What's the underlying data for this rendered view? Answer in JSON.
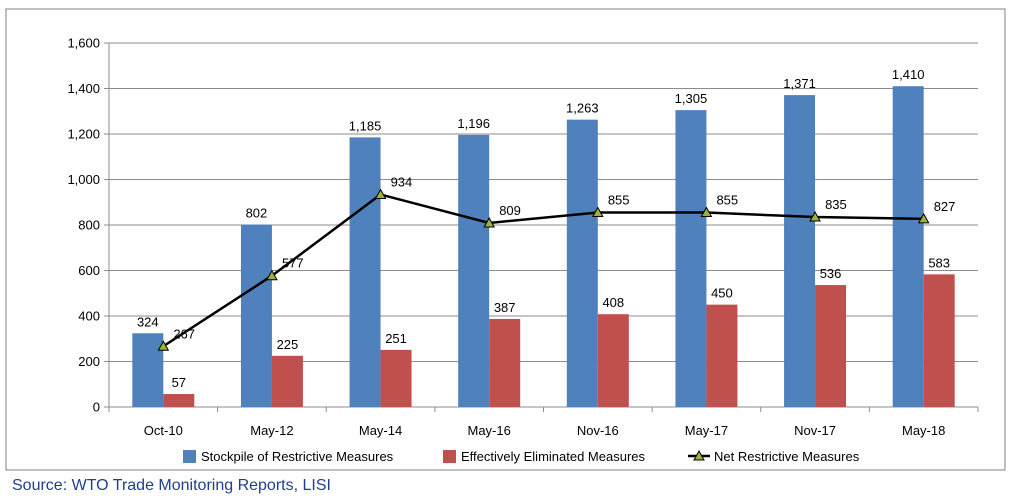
{
  "source_text": "Source: WTO Trade Monitoring Reports, LISI",
  "colors": {
    "stockpile": "#4f81bd",
    "eliminated": "#c0504d",
    "net_line": "#000000",
    "net_marker": "#99b33b",
    "source_text": "#1f3f8f"
  },
  "chart_data": {
    "type": "bar",
    "categories": [
      "Oct-10",
      "May-12",
      "May-14",
      "May-16",
      "Nov-16",
      "May-17",
      "Nov-17",
      "May-18"
    ],
    "series": [
      {
        "name": "Stockpile of Restrictive Measures",
        "type": "bar",
        "values": [
          324,
          802,
          1185,
          1196,
          1263,
          1305,
          1371,
          1410
        ],
        "labels": [
          "324",
          "802",
          "1,185",
          "1,196",
          "1,263",
          "1,305",
          "1,371",
          "1,410"
        ]
      },
      {
        "name": "Effectively Eliminated Measures",
        "type": "bar",
        "values": [
          57,
          225,
          251,
          387,
          408,
          450,
          536,
          583
        ],
        "labels": [
          "57",
          "225",
          "251",
          "387",
          "408",
          "450",
          "536",
          "583"
        ]
      },
      {
        "name": "Net Restrictive Measures",
        "type": "line",
        "values": [
          267,
          577,
          934,
          809,
          855,
          855,
          835,
          827
        ],
        "labels": [
          "267",
          "577",
          "934",
          "809",
          "855",
          "855",
          "835",
          "827"
        ]
      }
    ],
    "yticks": [
      "0",
      "200",
      "400",
      "600",
      "800",
      "1,000",
      "1,200",
      "1,400",
      "1,600"
    ],
    "ylim": [
      0,
      1600
    ],
    "grid": true,
    "legend": "bottom"
  }
}
